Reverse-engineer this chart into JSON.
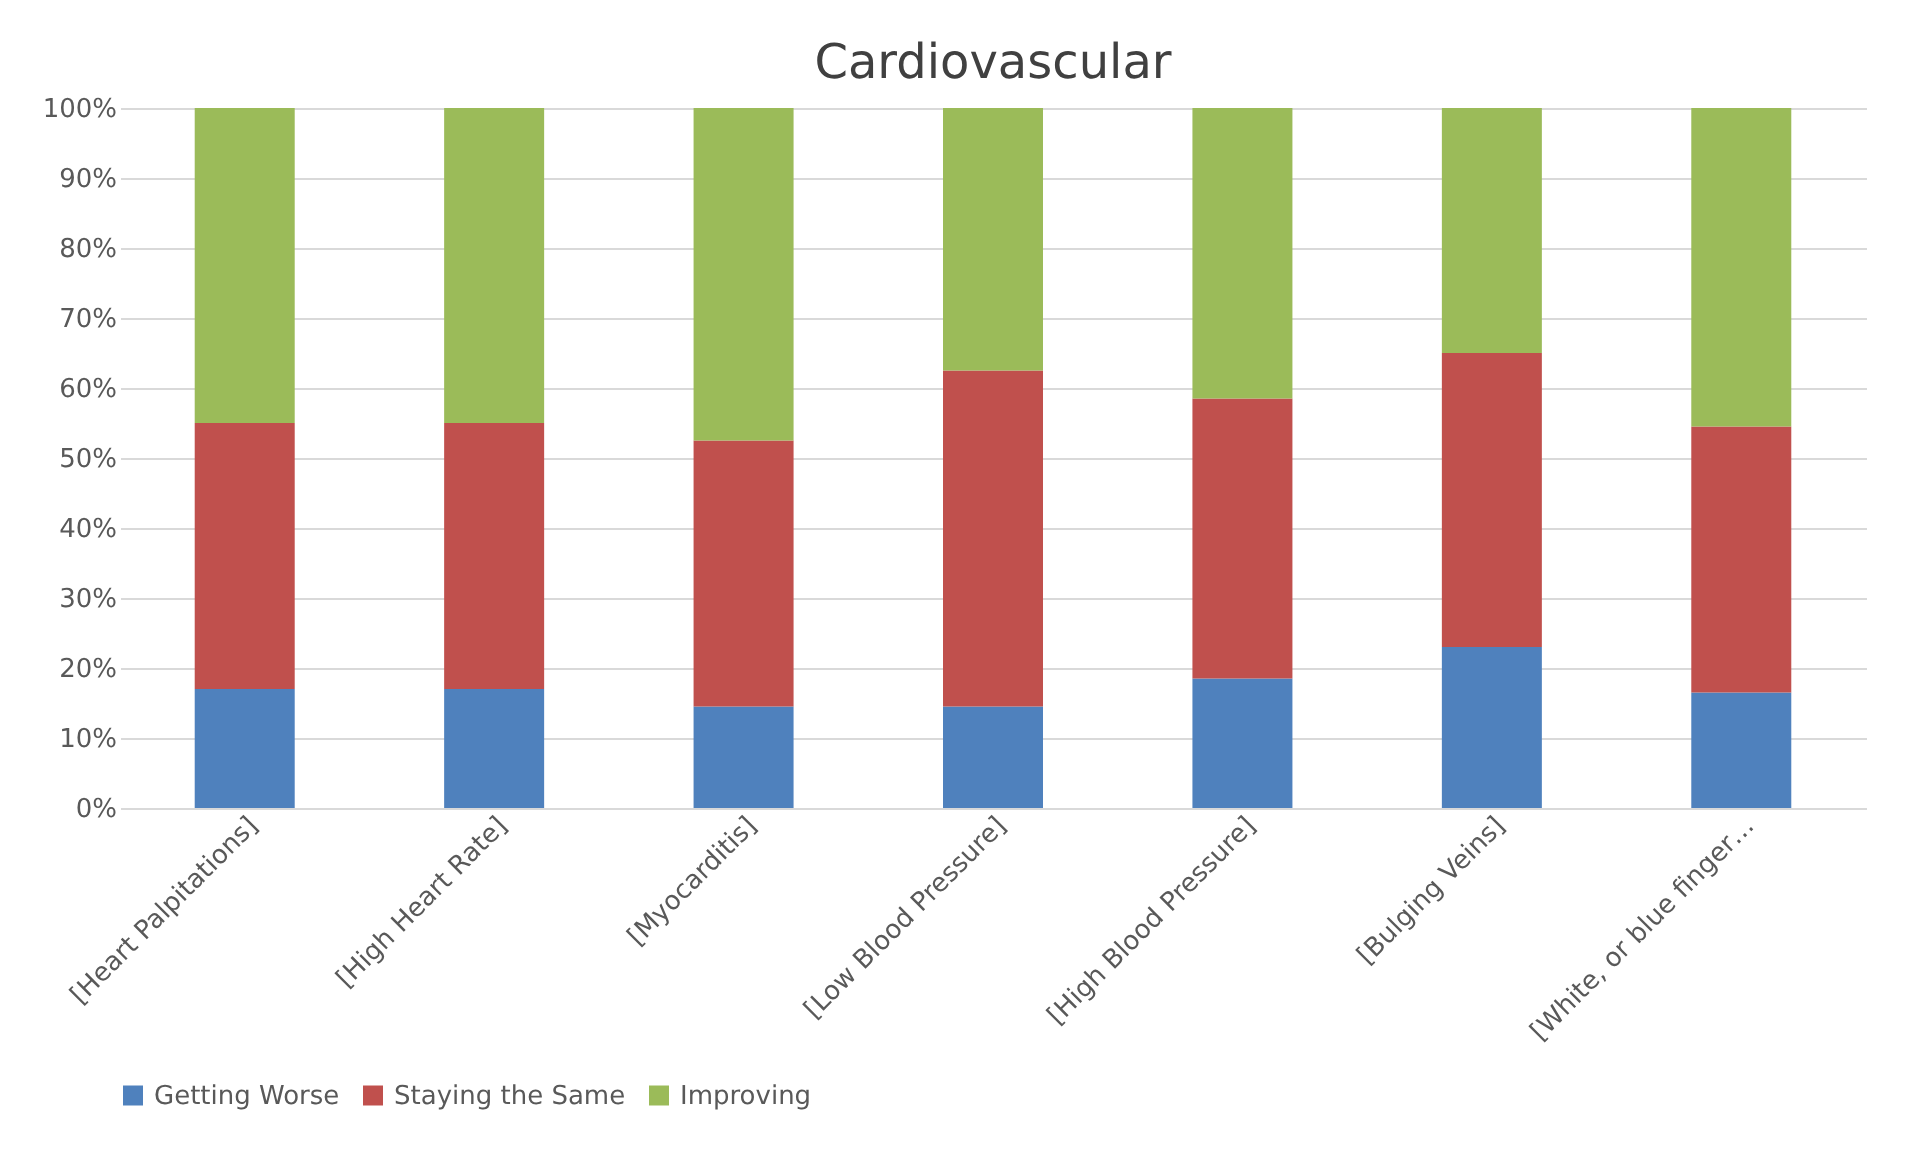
{
  "chart_data": {
    "type": "bar",
    "title": "Cardiovascular",
    "stacked": true,
    "categories": [
      "[Heart Palpitations]",
      "[High Heart Rate]",
      "[Myocarditis]",
      "[Low Blood Pressure]",
      "[High Blood Pressure]",
      "[Bulging Veins]",
      "[White, or blue finger…"
    ],
    "series": [
      {
        "name": "Getting Worse",
        "color": "#4f81bd",
        "values": [
          17,
          17,
          14.5,
          14.5,
          18.5,
          23,
          16.5
        ]
      },
      {
        "name": "Staying the Same",
        "color": "#c0504d",
        "values": [
          38,
          38,
          38,
          48,
          40,
          42,
          38
        ]
      },
      {
        "name": "Improving",
        "color": "#9bbb59",
        "values": [
          45,
          45,
          47.5,
          37.5,
          41.5,
          35,
          45.5
        ]
      }
    ],
    "ylim": [
      0,
      100
    ],
    "yticks": [
      {
        "value": 0,
        "label": "0%"
      },
      {
        "value": 10,
        "label": "10%"
      },
      {
        "value": 20,
        "label": "20%"
      },
      {
        "value": 30,
        "label": "30%"
      },
      {
        "value": 40,
        "label": "40%"
      },
      {
        "value": 50,
        "label": "50%"
      },
      {
        "value": 60,
        "label": "60%"
      },
      {
        "value": 70,
        "label": "70%"
      },
      {
        "value": 80,
        "label": "80%"
      },
      {
        "value": 90,
        "label": "90%"
      },
      {
        "value": 100,
        "label": "100%"
      }
    ],
    "grid": "y",
    "legend": "bottom"
  }
}
